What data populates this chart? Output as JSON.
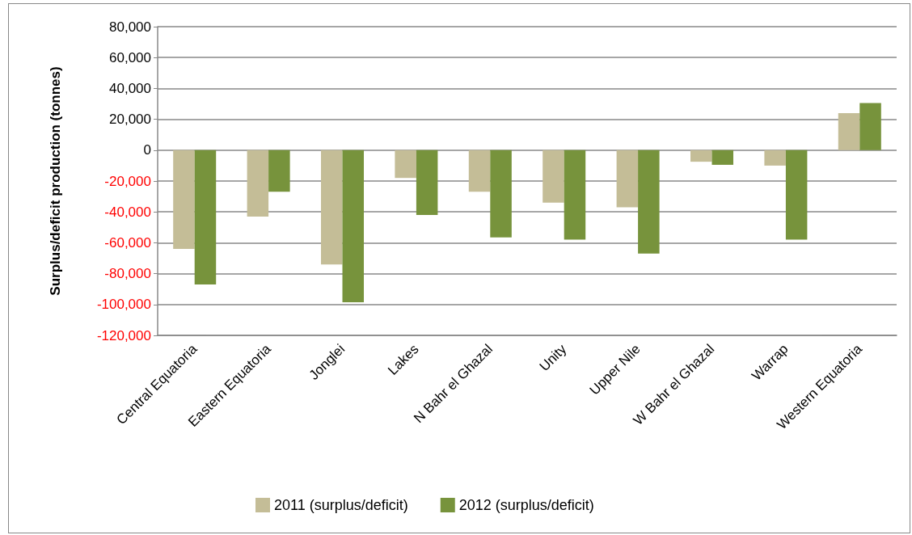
{
  "chart_data": {
    "type": "bar",
    "ylabel": "Surplus/deficit production (tonnes)",
    "categories": [
      "Central Equatoria",
      "Eastern Equatoria",
      "Jonglei",
      "Lakes",
      "N Bahr el Ghazal",
      "Unity",
      "Upper Nile",
      "W Bahr el Ghazal",
      "Warrap",
      "Western Equatoria"
    ],
    "series": [
      {
        "name": "2011 (surplus/deficit)",
        "color": "#c4bd97",
        "values": [
          -64000,
          -43000,
          -74000,
          -18000,
          -27000,
          -34000,
          -37000,
          -7500,
          -10000,
          24000
        ]
      },
      {
        "name": "2012 (surplus/deficit)",
        "color": "#77933c",
        "values": [
          -87000,
          -27000,
          -98500,
          -42000,
          -56500,
          -58000,
          -67000,
          -9500,
          -58000,
          30500
        ]
      }
    ],
    "ylim": [
      -120000,
      80000
    ],
    "yticks": [
      {
        "value": -120000,
        "label": "-120,000"
      },
      {
        "value": -100000,
        "label": "-100,000"
      },
      {
        "value": -80000,
        "label": "-80,000"
      },
      {
        "value": -60000,
        "label": "-60,000"
      },
      {
        "value": -40000,
        "label": "-40,000"
      },
      {
        "value": -20000,
        "label": "-20,000"
      },
      0,
      {
        "value": 20000,
        "label": "20,000"
      },
      {
        "value": 40000,
        "label": "40,000"
      },
      {
        "value": 60000,
        "label": "60,000"
      },
      {
        "value": 80000,
        "label": "80,000"
      }
    ],
    "grid": "y",
    "legend": "bottom"
  }
}
